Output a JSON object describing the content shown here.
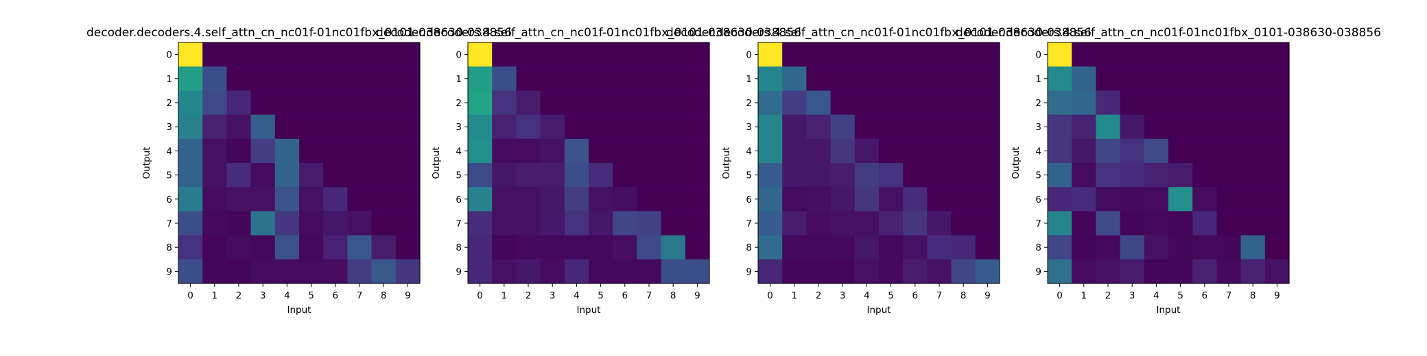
{
  "figure": {
    "title": "",
    "background": "#ffffff"
  },
  "chart_data": [
    {
      "type": "heatmap",
      "title": "decoder.decoders.4.self_attn_cn_nc01f-01nc01fbx_0101-038630-038856",
      "xlabel": "Input",
      "ylabel": "Output",
      "x_ticks": [
        "0",
        "1",
        "2",
        "3",
        "4",
        "5",
        "6",
        "7",
        "8",
        "9"
      ],
      "y_ticks": [
        "0",
        "1",
        "2",
        "3",
        "4",
        "5",
        "6",
        "7",
        "8",
        "9"
      ],
      "colormap": "viridis",
      "value_range": [
        0,
        1
      ],
      "grid": false,
      "values": [
        [
          1.0,
          0.0,
          0.0,
          0.0,
          0.0,
          0.0,
          0.0,
          0.0,
          0.0,
          0.0
        ],
        [
          0.7,
          0.3,
          0.0,
          0.0,
          0.0,
          0.0,
          0.0,
          0.0,
          0.0,
          0.0
        ],
        [
          0.58,
          0.28,
          0.14,
          0.0,
          0.0,
          0.0,
          0.0,
          0.0,
          0.0,
          0.0
        ],
        [
          0.55,
          0.12,
          0.06,
          0.38,
          0.0,
          0.0,
          0.0,
          0.0,
          0.0,
          0.0
        ],
        [
          0.4,
          0.06,
          0.02,
          0.22,
          0.4,
          0.0,
          0.0,
          0.0,
          0.0,
          0.0
        ],
        [
          0.4,
          0.06,
          0.16,
          0.04,
          0.4,
          0.1,
          0.0,
          0.0,
          0.0,
          0.0
        ],
        [
          0.52,
          0.04,
          0.06,
          0.06,
          0.32,
          0.06,
          0.14,
          0.0,
          0.0,
          0.0
        ],
        [
          0.3,
          0.03,
          0.02,
          0.48,
          0.2,
          0.04,
          0.08,
          0.06,
          0.0,
          0.0
        ],
        [
          0.18,
          0.02,
          0.04,
          0.03,
          0.32,
          0.03,
          0.12,
          0.34,
          0.1,
          0.0
        ],
        [
          0.3,
          0.02,
          0.01,
          0.04,
          0.04,
          0.04,
          0.04,
          0.22,
          0.34,
          0.2
        ]
      ]
    },
    {
      "type": "heatmap",
      "title": "decoder.decoders.4.self_attn_cn_nc01f-01nc01fbx_0101-038630-038856",
      "xlabel": "Input",
      "ylabel": "Output",
      "x_ticks": [
        "0",
        "1",
        "2",
        "3",
        "4",
        "5",
        "6",
        "7",
        "8",
        "9"
      ],
      "y_ticks": [
        "0",
        "1",
        "2",
        "3",
        "4",
        "5",
        "6",
        "7",
        "8",
        "9"
      ],
      "colormap": "viridis",
      "value_range": [
        0,
        1
      ],
      "grid": false,
      "values": [
        [
          1.0,
          0.0,
          0.0,
          0.0,
          0.0,
          0.0,
          0.0,
          0.0,
          0.0,
          0.0
        ],
        [
          0.7,
          0.3,
          0.0,
          0.0,
          0.0,
          0.0,
          0.0,
          0.0,
          0.0,
          0.0
        ],
        [
          0.72,
          0.18,
          0.1,
          0.0,
          0.0,
          0.0,
          0.0,
          0.0,
          0.0,
          0.0
        ],
        [
          0.6,
          0.12,
          0.18,
          0.1,
          0.0,
          0.0,
          0.0,
          0.0,
          0.0,
          0.0
        ],
        [
          0.62,
          0.04,
          0.04,
          0.06,
          0.32,
          0.0,
          0.0,
          0.0,
          0.0,
          0.0
        ],
        [
          0.28,
          0.08,
          0.1,
          0.1,
          0.3,
          0.16,
          0.0,
          0.0,
          0.0,
          0.0
        ],
        [
          0.55,
          0.06,
          0.06,
          0.08,
          0.22,
          0.06,
          0.05,
          0.0,
          0.0,
          0.0
        ],
        [
          0.16,
          0.06,
          0.06,
          0.08,
          0.18,
          0.08,
          0.26,
          0.24,
          0.0,
          0.0
        ],
        [
          0.14,
          0.02,
          0.03,
          0.03,
          0.03,
          0.03,
          0.05,
          0.28,
          0.5,
          0.0
        ],
        [
          0.14,
          0.06,
          0.08,
          0.04,
          0.14,
          0.03,
          0.03,
          0.03,
          0.3,
          0.3
        ]
      ]
    },
    {
      "type": "heatmap",
      "title": "decoder.decoders.4.self_attn_cn_nc01f-01nc01fbx_0101-038630-038856",
      "xlabel": "Input",
      "ylabel": "Output",
      "x_ticks": [
        "0",
        "1",
        "2",
        "3",
        "4",
        "5",
        "6",
        "7",
        "8",
        "9"
      ],
      "y_ticks": [
        "0",
        "1",
        "2",
        "3",
        "4",
        "5",
        "6",
        "7",
        "8",
        "9"
      ],
      "colormap": "viridis",
      "value_range": [
        0,
        1
      ],
      "grid": false,
      "values": [
        [
          1.0,
          0.0,
          0.0,
          0.0,
          0.0,
          0.0,
          0.0,
          0.0,
          0.0,
          0.0
        ],
        [
          0.58,
          0.42,
          0.0,
          0.0,
          0.0,
          0.0,
          0.0,
          0.0,
          0.0,
          0.0
        ],
        [
          0.44,
          0.22,
          0.34,
          0.0,
          0.0,
          0.0,
          0.0,
          0.0,
          0.0,
          0.0
        ],
        [
          0.56,
          0.08,
          0.12,
          0.24,
          0.0,
          0.0,
          0.0,
          0.0,
          0.0,
          0.0
        ],
        [
          0.56,
          0.08,
          0.08,
          0.2,
          0.08,
          0.0,
          0.0,
          0.0,
          0.0,
          0.0
        ],
        [
          0.36,
          0.08,
          0.08,
          0.1,
          0.22,
          0.18,
          0.0,
          0.0,
          0.0,
          0.0
        ],
        [
          0.42,
          0.04,
          0.05,
          0.08,
          0.2,
          0.06,
          0.16,
          0.0,
          0.0,
          0.0
        ],
        [
          0.36,
          0.1,
          0.04,
          0.06,
          0.06,
          0.12,
          0.2,
          0.08,
          0.0,
          0.0
        ],
        [
          0.44,
          0.03,
          0.03,
          0.03,
          0.08,
          0.03,
          0.06,
          0.16,
          0.14,
          0.0
        ],
        [
          0.14,
          0.02,
          0.02,
          0.02,
          0.06,
          0.03,
          0.1,
          0.06,
          0.26,
          0.36
        ]
      ]
    },
    {
      "type": "heatmap",
      "title": "decoder.decoders.4.self_attn_cn_nc01f-01nc01fbx_0101-038630-038856",
      "xlabel": "Input",
      "ylabel": "Output",
      "x_ticks": [
        "0",
        "1",
        "2",
        "3",
        "4",
        "5",
        "6",
        "7",
        "8",
        "9"
      ],
      "y_ticks": [
        "0",
        "1",
        "2",
        "3",
        "4",
        "5",
        "6",
        "7",
        "8",
        "9"
      ],
      "colormap": "viridis",
      "value_range": [
        0,
        1
      ],
      "grid": false,
      "values": [
        [
          1.0,
          0.0,
          0.0,
          0.0,
          0.0,
          0.0,
          0.0,
          0.0,
          0.0,
          0.0
        ],
        [
          0.6,
          0.4,
          0.0,
          0.0,
          0.0,
          0.0,
          0.0,
          0.0,
          0.0,
          0.0
        ],
        [
          0.44,
          0.42,
          0.14,
          0.0,
          0.0,
          0.0,
          0.0,
          0.0,
          0.0,
          0.0
        ],
        [
          0.2,
          0.12,
          0.6,
          0.08,
          0.0,
          0.0,
          0.0,
          0.0,
          0.0,
          0.0
        ],
        [
          0.2,
          0.08,
          0.26,
          0.18,
          0.28,
          0.0,
          0.0,
          0.0,
          0.0,
          0.0
        ],
        [
          0.4,
          0.04,
          0.18,
          0.16,
          0.12,
          0.1,
          0.0,
          0.0,
          0.0,
          0.0
        ],
        [
          0.14,
          0.16,
          0.04,
          0.03,
          0.04,
          0.62,
          0.04,
          0.0,
          0.0,
          0.0
        ],
        [
          0.56,
          0.02,
          0.28,
          0.02,
          0.03,
          0.01,
          0.14,
          0.0,
          0.0,
          0.0
        ],
        [
          0.26,
          0.01,
          0.03,
          0.26,
          0.06,
          0.02,
          0.03,
          0.02,
          0.4,
          0.0
        ],
        [
          0.46,
          0.04,
          0.06,
          0.1,
          0.01,
          0.02,
          0.12,
          0.03,
          0.12,
          0.06
        ]
      ]
    }
  ]
}
